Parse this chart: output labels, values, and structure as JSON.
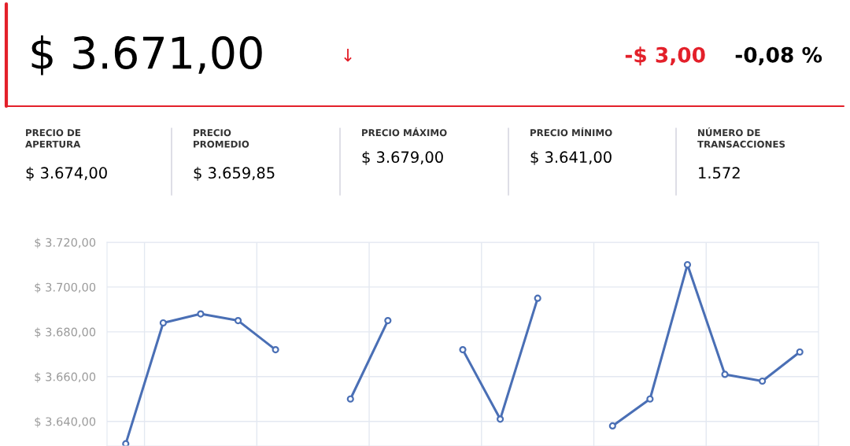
{
  "chart_data": [
    {
      "type": "other",
      "annotations": [
        "$ 3.671,00",
        "↓",
        "-$ 3,00",
        "-0,08 %",
        "PRECIO DE\nAPERTURA",
        "$ 3.674,00",
        "PRECIO\nPROMEDIO",
        "$ 3.659,85",
        "PRECIO MÁXIMO",
        "$ 3.679,00",
        "PRECIO MÍNIMO",
        "$ 3.641,00",
        "NÚMERO DE\nTRANSACCIONES",
        "1.572"
      ]
    },
    {
      "type": "line",
      "categories": [
        null,
        null,
        null,
        null,
        null,
        null,
        null,
        null,
        null,
        null,
        null,
        null,
        null,
        null,
        null,
        null,
        null,
        null,
        null
      ],
      "series": [
        {
          "color": "#4a6fb5",
          "values": [
            3630,
            3684,
            3688,
            3685,
            3672,
            null,
            3650,
            3685,
            null,
            3672,
            3641,
            3695,
            null,
            3638,
            3650,
            3710,
            3661,
            3658,
            3671
          ]
        }
      ],
      "ylim": [
        3629,
        3720
      ],
      "yticks": [
        {
          "value": 3640,
          "label": "$ 3.640,00"
        },
        {
          "value": 3660,
          "label": "$ 3.660,00"
        },
        {
          "value": 3680,
          "label": "$ 3.680,00"
        },
        {
          "value": 3700,
          "label": "$ 3.700,00"
        },
        {
          "value": 3720,
          "label": "$ 3.720,00"
        }
      ],
      "tick_labels": "y",
      "grid": true,
      "marker": "circle",
      "line_style": "solid"
    }
  ]
}
